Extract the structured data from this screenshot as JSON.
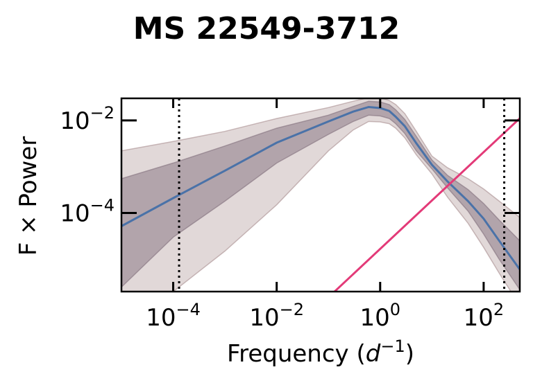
{
  "chart_data": {
    "type": "area",
    "title": "MS 22549-3712",
    "xlabel": "Frequency",
    "xlabel_unit_base": "d",
    "xlabel_unit_exp": "−1",
    "ylabel": "F × Power",
    "x_scale": "log",
    "y_scale": "log",
    "xlim": [
      1e-05,
      500
    ],
    "ylim": [
      2e-06,
      0.03
    ],
    "x_ticks": [
      {
        "value": 0.0001,
        "base": "10",
        "exp": "−4"
      },
      {
        "value": 0.01,
        "base": "10",
        "exp": "−2"
      },
      {
        "value": 1,
        "base": "10",
        "exp": "0"
      },
      {
        "value": 100,
        "base": "10",
        "exp": "2"
      }
    ],
    "y_ticks": [
      {
        "value": 0.0001,
        "base": "10",
        "exp": "−4"
      },
      {
        "value": 0.01,
        "base": "10",
        "exp": "−2"
      }
    ],
    "grid": false,
    "vertical_lines": [
      0.00013,
      250
    ],
    "colors": {
      "median": "#4a72a8",
      "band_inner": "#8c7a86",
      "band_outer": "#a88e90",
      "noise_line": "#e33a78",
      "vline": "#000000"
    },
    "series": [
      {
        "x": [
          1e-05,
          0.0001,
          0.001,
          0.01,
          0.1,
          0.3,
          0.6,
          1.0,
          1.5,
          2.0,
          3.0,
          5.0,
          10,
          20,
          50,
          100,
          200,
          500
        ],
        "values": [
          5.2e-05,
          0.00021,
          0.00082,
          0.0033,
          0.0095,
          0.0155,
          0.0195,
          0.0185,
          0.016,
          0.012,
          0.0075,
          0.0032,
          0.0011,
          0.00048,
          0.00018,
          7.5e-05,
          2.5e-05,
          6e-06
        ]
      },
      {
        "x": [
          1e-05,
          0.0001,
          0.001,
          0.01,
          0.1,
          0.3,
          0.6,
          1.0,
          1.5,
          2.0,
          3.0,
          5.0,
          10,
          20,
          50,
          100,
          200,
          500
        ],
        "lower": [
          2.5e-06,
          3e-05,
          0.00018,
          0.0012,
          0.005,
          0.0095,
          0.013,
          0.0125,
          0.011,
          0.0085,
          0.0052,
          0.0022,
          0.0009,
          0.00035,
          0.00011,
          3.5e-05,
          1e-05,
          2.2e-06
        ],
        "upper": [
          0.00055,
          0.0012,
          0.0028,
          0.0068,
          0.013,
          0.02,
          0.026,
          0.025,
          0.022,
          0.017,
          0.0105,
          0.0045,
          0.0014,
          0.00065,
          0.00032,
          0.00016,
          7e-05,
          2.5e-05
        ]
      },
      {
        "x": [
          1e-05,
          0.0001,
          0.001,
          0.01,
          0.1,
          0.3,
          0.6,
          1.0,
          1.5,
          2.0,
          3.0,
          5.0,
          10,
          20,
          50,
          100,
          200,
          500
        ],
        "lower": [
          1e-06,
          2e-06,
          1.5e-05,
          0.00015,
          0.0022,
          0.0062,
          0.0095,
          0.0093,
          0.0085,
          0.0068,
          0.0042,
          0.0018,
          0.0007,
          0.00022,
          6e-05,
          1.8e-05,
          5e-06,
          1e-06
        ],
        "upper": [
          0.0022,
          0.0035,
          0.0058,
          0.011,
          0.019,
          0.026,
          0.031,
          0.031,
          0.027,
          0.022,
          0.014,
          0.0058,
          0.0017,
          0.00095,
          0.00055,
          0.00033,
          0.00018,
          8e-05
        ]
      },
      {
        "x": [
          0.1,
          500
        ],
        "values": [
          1.5e-06,
          0.0111
        ]
      }
    ]
  }
}
